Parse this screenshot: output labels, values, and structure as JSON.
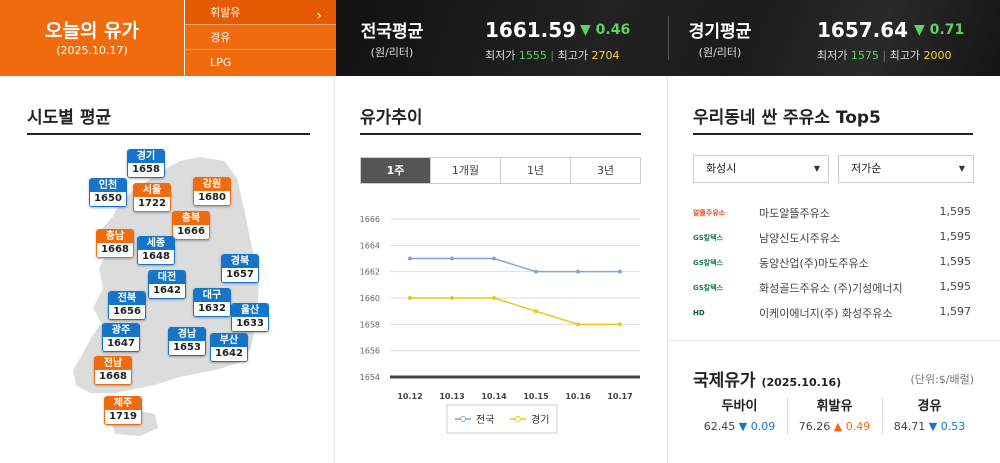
{
  "top": {
    "today_title": "오늘의 유가",
    "today_date": "(2025.10.17)",
    "menu": [
      "휘발유",
      "경유",
      "LPG"
    ],
    "national": {
      "name": "전국평균",
      "unit": "(원/리터)",
      "price": "1661.59",
      "change": "▼ 0.46",
      "low_label": "최저가",
      "low": "1555",
      "high_label": "최고가",
      "high": "2704"
    },
    "gyeonggi": {
      "name": "경기평균",
      "unit": "(원/리터)",
      "price": "1657.64",
      "change": "▼ 0.71",
      "low_label": "최저가",
      "low": "1575",
      "high_label": "최고가",
      "high": "2000"
    }
  },
  "regions_panel": {
    "title": "시도별 평균"
  },
  "regions": [
    {
      "name": "경기",
      "value": "1658",
      "color": "blue"
    },
    {
      "name": "인천",
      "value": "1650",
      "color": "blue"
    },
    {
      "name": "서울",
      "value": "1722",
      "color": "orange"
    },
    {
      "name": "강원",
      "value": "1680",
      "color": "orange"
    },
    {
      "name": "충북",
      "value": "1666",
      "color": "orange"
    },
    {
      "name": "충남",
      "value": "1668",
      "color": "orange"
    },
    {
      "name": "세종",
      "value": "1648",
      "color": "blue"
    },
    {
      "name": "경북",
      "value": "1657",
      "color": "blue"
    },
    {
      "name": "대전",
      "value": "1642",
      "color": "blue"
    },
    {
      "name": "대구",
      "value": "1632",
      "color": "blue"
    },
    {
      "name": "전북",
      "value": "1656",
      "color": "blue"
    },
    {
      "name": "울산",
      "value": "1633",
      "color": "blue"
    },
    {
      "name": "광주",
      "value": "1647",
      "color": "blue"
    },
    {
      "name": "경남",
      "value": "1653",
      "color": "blue"
    },
    {
      "name": "부산",
      "value": "1642",
      "color": "blue"
    },
    {
      "name": "전남",
      "value": "1668",
      "color": "orange"
    },
    {
      "name": "제주",
      "value": "1719",
      "color": "orange"
    }
  ],
  "trend": {
    "title": "유가추이",
    "tabs": [
      "1주",
      "1개월",
      "1년",
      "3년"
    ]
  },
  "chart_data": {
    "type": "line",
    "x": [
      "10.12",
      "10.13",
      "10.14",
      "10.15",
      "10.16",
      "10.17"
    ],
    "series": [
      {
        "name": "전국",
        "values": [
          1663,
          1663,
          1663,
          1662,
          1662,
          1662
        ],
        "color": "#7fa6d8"
      },
      {
        "name": "경기",
        "values": [
          1660,
          1660,
          1660,
          1659,
          1658,
          1658
        ],
        "color": "#f0c419"
      }
    ],
    "yticks": [
      "1666",
      "1664",
      "1662",
      "1660",
      "1658",
      "1656",
      "1654"
    ],
    "ylim": [
      1654,
      1666
    ],
    "grid": true,
    "legend": "bottom"
  },
  "top5": {
    "title": "우리동네 싼 주유소 Top5",
    "city": "화성시",
    "sort": "저가순",
    "stations": [
      {
        "brand": "알뜰주유소",
        "name": "마도알뜰주유소",
        "price": "1,595",
        "brand_color": "#e8491d"
      },
      {
        "brand": "GS칼텍스",
        "name": "남양신도시주유소",
        "price": "1,595",
        "brand_color": "#1a7a4c"
      },
      {
        "brand": "GS칼텍스",
        "name": "동양산업(주)마도주유소",
        "price": "1,595",
        "brand_color": "#1a7a4c"
      },
      {
        "brand": "GS칼텍스",
        "name": "화성골드주유소 (주)기성에너지",
        "price": "1,595",
        "brand_color": "#1a7a4c"
      },
      {
        "brand": "HD",
        "name": "이케이에너지(주) 화성주유소",
        "price": "1,597",
        "brand_color": "#0a5c36"
      }
    ]
  },
  "intl": {
    "title": "국제유가",
    "date": "(2025.10.16)",
    "unit": "(단위:$/배럴)",
    "items": [
      {
        "name": "두바이",
        "price": "62.45",
        "change": "▼ 0.09",
        "dir": "dn"
      },
      {
        "name": "휘발유",
        "price": "76.26",
        "change": "▲ 0.49",
        "dir": "up"
      },
      {
        "name": "경유",
        "price": "84.71",
        "change": "▼ 0.53",
        "dir": "dn"
      }
    ]
  }
}
